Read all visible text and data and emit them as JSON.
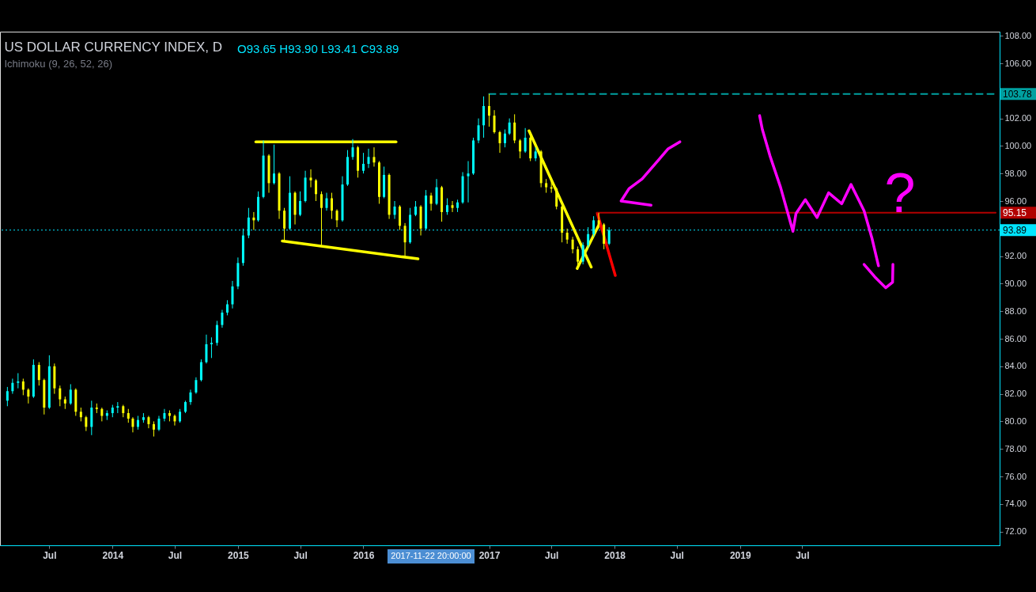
{
  "chart_data": {
    "type": "candlestick",
    "title": "US DOLLAR CURRENCY INDEX, D",
    "subtitle": "Ichimoku (9, 26, 52, 26)",
    "annotations": [
      "O93.65 H93.90 L93.41 C93.89",
      "2017-11-22 20:00:00",
      "?"
    ],
    "x": [
      "2013-03-01",
      "2013-03-16",
      "2013-04-01",
      "2013-04-16",
      "2013-05-01",
      "2013-05-16",
      "2013-06-01",
      "2013-06-16",
      "2013-07-01",
      "2013-07-16",
      "2013-08-01",
      "2013-08-16",
      "2013-09-01",
      "2013-09-16",
      "2013-10-01",
      "2013-10-16",
      "2013-11-01",
      "2013-11-16",
      "2013-12-01",
      "2013-12-16",
      "2014-01-01",
      "2014-01-16",
      "2014-02-01",
      "2014-02-16",
      "2014-03-01",
      "2014-03-16",
      "2014-04-01",
      "2014-04-16",
      "2014-05-01",
      "2014-05-16",
      "2014-06-01",
      "2014-06-16",
      "2014-07-01",
      "2014-07-16",
      "2014-08-01",
      "2014-08-16",
      "2014-09-01",
      "2014-09-16",
      "2014-10-01",
      "2014-10-16",
      "2014-11-01",
      "2014-11-16",
      "2014-12-01",
      "2014-12-16",
      "2015-01-01",
      "2015-01-16",
      "2015-02-01",
      "2015-02-16",
      "2015-03-01",
      "2015-03-16",
      "2015-04-01",
      "2015-04-16",
      "2015-05-01",
      "2015-05-16",
      "2015-06-01",
      "2015-06-16",
      "2015-07-01",
      "2015-07-16",
      "2015-08-01",
      "2015-08-16",
      "2015-09-01",
      "2015-09-16",
      "2015-10-01",
      "2015-10-16",
      "2015-11-01",
      "2015-11-16",
      "2015-12-01",
      "2015-12-16",
      "2016-01-01",
      "2016-01-16",
      "2016-02-01",
      "2016-02-16",
      "2016-03-01",
      "2016-03-16",
      "2016-04-01",
      "2016-04-16",
      "2016-05-01",
      "2016-05-16",
      "2016-06-01",
      "2016-06-16",
      "2016-07-01",
      "2016-07-16",
      "2016-08-01",
      "2016-08-16",
      "2016-09-01",
      "2016-09-16",
      "2016-10-01",
      "2016-10-16",
      "2016-11-01",
      "2016-11-16",
      "2016-12-01",
      "2016-12-16",
      "2017-01-01",
      "2017-01-16",
      "2017-02-01",
      "2017-02-16",
      "2017-03-01",
      "2017-03-16",
      "2017-04-01",
      "2017-04-16",
      "2017-05-01",
      "2017-05-16",
      "2017-06-01",
      "2017-06-16",
      "2017-07-01",
      "2017-07-16",
      "2017-08-01",
      "2017-08-16",
      "2017-09-01",
      "2017-09-16",
      "2017-10-01",
      "2017-10-16",
      "2017-11-01",
      "2017-11-16",
      "2017-12-01",
      "2017-12-16"
    ],
    "ohlc": [
      [
        81.5,
        82.5,
        81.1,
        82.2
      ],
      [
        82.2,
        83.1,
        82.0,
        82.8
      ],
      [
        82.8,
        83.5,
        82.4,
        82.9
      ],
      [
        82.9,
        83.1,
        81.9,
        82.3
      ],
      [
        82.3,
        82.4,
        81.3,
        81.8
      ],
      [
        81.8,
        84.5,
        81.7,
        84.1
      ],
      [
        84.1,
        84.3,
        82.6,
        83.0
      ],
      [
        83.0,
        83.1,
        80.5,
        81.0
      ],
      [
        81.0,
        84.8,
        80.9,
        84.0
      ],
      [
        84.0,
        84.2,
        82.0,
        82.4
      ],
      [
        82.4,
        82.6,
        81.1,
        81.6
      ],
      [
        81.6,
        81.8,
        80.9,
        81.3
      ],
      [
        81.3,
        82.7,
        81.2,
        82.3
      ],
      [
        82.3,
        82.4,
        80.4,
        80.7
      ],
      [
        80.7,
        81.0,
        80.0,
        80.3
      ],
      [
        80.3,
        80.4,
        79.3,
        79.6
      ],
      [
        79.6,
        81.5,
        79.0,
        81.0
      ],
      [
        81.0,
        81.3,
        80.6,
        80.9
      ],
      [
        80.9,
        81.0,
        80.0,
        80.4
      ],
      [
        80.4,
        80.8,
        80.1,
        80.6
      ],
      [
        80.6,
        81.2,
        80.3,
        81.0
      ],
      [
        81.0,
        81.4,
        80.6,
        81.1
      ],
      [
        81.1,
        81.2,
        80.3,
        80.6
      ],
      [
        80.6,
        80.9,
        79.9,
        80.2
      ],
      [
        80.2,
        80.3,
        79.2,
        79.6
      ],
      [
        79.6,
        80.4,
        79.4,
        80.1
      ],
      [
        80.1,
        80.6,
        79.9,
        80.3
      ],
      [
        80.3,
        80.4,
        79.5,
        79.8
      ],
      [
        79.8,
        80.0,
        78.9,
        79.4
      ],
      [
        79.4,
        80.4,
        79.3,
        80.2
      ],
      [
        80.2,
        80.9,
        80.0,
        80.6
      ],
      [
        80.6,
        80.8,
        80.0,
        80.4
      ],
      [
        80.4,
        80.5,
        79.7,
        80.0
      ],
      [
        80.0,
        80.9,
        79.9,
        80.7
      ],
      [
        80.7,
        81.5,
        80.6,
        81.4
      ],
      [
        81.4,
        82.3,
        81.2,
        82.1
      ],
      [
        82.1,
        83.2,
        82.0,
        83.0
      ],
      [
        83.0,
        84.5,
        82.9,
        84.3
      ],
      [
        84.3,
        86.3,
        84.2,
        85.6
      ],
      [
        85.6,
        86.1,
        84.6,
        85.7
      ],
      [
        85.7,
        87.3,
        85.5,
        87.0
      ],
      [
        87.0,
        88.1,
        86.8,
        87.9
      ],
      [
        87.9,
        88.8,
        87.7,
        88.5
      ],
      [
        88.5,
        90.2,
        88.2,
        89.8
      ],
      [
        89.8,
        91.9,
        89.6,
        91.5
      ],
      [
        91.5,
        94.0,
        91.3,
        93.5
      ],
      [
        93.5,
        95.5,
        93.3,
        94.8
      ],
      [
        94.8,
        95.2,
        93.9,
        94.6
      ],
      [
        94.6,
        96.7,
        94.5,
        96.3
      ],
      [
        96.3,
        100.4,
        96.2,
        99.3
      ],
      [
        99.3,
        99.4,
        96.6,
        97.3
      ],
      [
        97.3,
        100.1,
        97.2,
        98.0
      ],
      [
        98.0,
        98.1,
        94.7,
        95.3
      ],
      [
        95.3,
        95.5,
        93.1,
        94.0
      ],
      [
        94.0,
        97.8,
        93.9,
        96.6
      ],
      [
        96.6,
        96.7,
        94.3,
        95.0
      ],
      [
        95.0,
        96.7,
        94.9,
        96.0
      ],
      [
        96.0,
        98.2,
        95.9,
        97.7
      ],
      [
        97.7,
        98.3,
        97.0,
        97.5
      ],
      [
        97.5,
        97.6,
        96.0,
        96.5
      ],
      [
        96.5,
        96.7,
        92.8,
        95.5
      ],
      [
        95.5,
        96.6,
        95.3,
        96.2
      ],
      [
        96.2,
        96.6,
        94.7,
        95.3
      ],
      [
        95.3,
        95.4,
        94.1,
        94.6
      ],
      [
        94.6,
        97.8,
        94.5,
        97.2
      ],
      [
        97.2,
        99.7,
        97.1,
        99.2
      ],
      [
        99.2,
        100.5,
        99.0,
        99.9
      ],
      [
        99.9,
        100.0,
        97.7,
        98.2
      ],
      [
        98.2,
        99.5,
        98.0,
        98.7
      ],
      [
        98.7,
        99.8,
        98.4,
        99.2
      ],
      [
        99.2,
        99.9,
        98.5,
        98.8
      ],
      [
        98.8,
        98.9,
        95.8,
        96.3
      ],
      [
        96.3,
        98.5,
        96.2,
        97.9
      ],
      [
        97.9,
        98.0,
        94.7,
        95.0
      ],
      [
        95.0,
        96.0,
        94.7,
        95.6
      ],
      [
        95.6,
        95.7,
        93.9,
        94.2
      ],
      [
        94.2,
        94.4,
        92.0,
        93.0
      ],
      [
        93.0,
        95.5,
        92.9,
        95.0
      ],
      [
        95.0,
        96.0,
        94.9,
        95.6
      ],
      [
        95.6,
        95.7,
        93.5,
        94.0
      ],
      [
        94.0,
        96.8,
        93.9,
        96.4
      ],
      [
        96.4,
        96.6,
        95.3,
        95.8
      ],
      [
        95.8,
        97.6,
        95.7,
        97.0
      ],
      [
        97.0,
        97.1,
        94.5,
        95.2
      ],
      [
        95.2,
        96.2,
        95.0,
        95.7
      ],
      [
        95.7,
        96.0,
        95.2,
        95.5
      ],
      [
        95.5,
        96.1,
        95.2,
        95.9
      ],
      [
        95.9,
        98.1,
        95.8,
        97.8
      ],
      [
        97.8,
        98.9,
        95.9,
        98.0
      ],
      [
        98.0,
        100.6,
        97.9,
        100.4
      ],
      [
        100.4,
        102.0,
        100.2,
        101.5
      ],
      [
        101.5,
        103.6,
        100.6,
        102.9
      ],
      [
        102.9,
        103.78,
        101.4,
        102.2
      ],
      [
        102.2,
        102.6,
        100.9,
        101.0
      ],
      [
        101.0,
        101.1,
        99.5,
        100.2
      ],
      [
        100.2,
        101.2,
        99.9,
        100.9
      ],
      [
        100.9,
        102.0,
        100.8,
        101.7
      ],
      [
        101.7,
        102.3,
        100.2,
        100.4
      ],
      [
        100.4,
        100.5,
        99.1,
        99.6
      ],
      [
        99.6,
        101.3,
        99.5,
        100.6
      ],
      [
        100.6,
        100.7,
        98.9,
        99.1
      ],
      [
        99.1,
        99.9,
        98.9,
        99.6
      ],
      [
        99.6,
        99.7,
        97.0,
        97.3
      ],
      [
        97.3,
        97.6,
        96.6,
        97.0
      ],
      [
        97.0,
        97.6,
        96.6,
        96.9
      ],
      [
        96.9,
        97.0,
        95.4,
        95.6
      ],
      [
        95.6,
        95.7,
        93.0,
        93.7
      ],
      [
        93.7,
        94.0,
        92.9,
        93.2
      ],
      [
        93.2,
        93.4,
        92.2,
        92.5
      ],
      [
        92.5,
        92.7,
        91.0,
        91.6
      ],
      [
        91.6,
        93.0,
        91.4,
        92.8
      ],
      [
        92.8,
        94.1,
        92.6,
        93.6
      ],
      [
        93.6,
        94.9,
        93.4,
        94.6
      ],
      [
        94.6,
        95.15,
        94.0,
        94.3
      ],
      [
        94.3,
        94.4,
        92.5,
        92.9
      ],
      [
        92.9,
        94.1,
        92.8,
        93.89
      ]
    ],
    "colors": [
      "#00ffff",
      "#00ffff",
      "#00ffff",
      "#ffff00",
      "#ffff00",
      "#00ffff",
      "#ffff00",
      "#ffff00",
      "#00ffff",
      "#ffff00",
      "#ffff00",
      "#ffff00",
      "#00ffff",
      "#ffff00",
      "#ffff00",
      "#ffff00",
      "#00ffff",
      "#ffff00",
      "#ffff00",
      "#00ffff",
      "#00ffff",
      "#00ffff",
      "#ffff00",
      "#ffff00",
      "#ffff00",
      "#00ffff",
      "#00ffff",
      "#ffff00",
      "#ffff00",
      "#00ffff",
      "#00ffff",
      "#ffff00",
      "#ffff00",
      "#00ffff",
      "#00ffff",
      "#00ffff",
      "#00ffff",
      "#00ffff",
      "#00ffff",
      "#00ffff",
      "#00ffff",
      "#00ffff",
      "#00ffff",
      "#00ffff",
      "#00ffff",
      "#00ffff",
      "#00ffff",
      "#ffff00",
      "#00ffff",
      "#00ffff",
      "#ffff00",
      "#00ffff",
      "#ffff00",
      "#ffff00",
      "#00ffff",
      "#ffff00",
      "#00ffff",
      "#00ffff",
      "#ffff00",
      "#ffff00",
      "#ffff00",
      "#00ffff",
      "#ffff00",
      "#ffff00",
      "#00ffff",
      "#00ffff",
      "#00ffff",
      "#ffff00",
      "#00ffff",
      "#00ffff",
      "#ffff00",
      "#ffff00",
      "#00ffff",
      "#ffff00",
      "#00ffff",
      "#ffff00",
      "#ffff00",
      "#00ffff",
      "#00ffff",
      "#ffff00",
      "#00ffff",
      "#ffff00",
      "#00ffff",
      "#ffff00",
      "#00ffff",
      "#ffff00",
      "#00ffff",
      "#00ffff",
      "#00ffff",
      "#00ffff",
      "#00ffff",
      "#00ffff",
      "#ffff00",
      "#ffff00",
      "#ffff00",
      "#00ffff",
      "#00ffff",
      "#ffff00",
      "#ffff00",
      "#00ffff",
      "#ffff00",
      "#00ffff",
      "#ffff00",
      "#ffff00",
      "#ffff00",
      "#ffff00",
      "#ffff00",
      "#ffff00",
      "#ffff00",
      "#ffff00",
      "#00ffff",
      "#00ffff",
      "#00ffff",
      "#ffff00",
      "#ffff00",
      "#00ffff"
    ],
    "series": [
      {
        "type": "line",
        "color": "#ffff00",
        "x": [
          "2015-02-22",
          "2016-04-05"
        ],
        "values": [
          100.3,
          100.3
        ]
      },
      {
        "type": "line",
        "color": "#ffff00",
        "x": [
          "2015-05-10",
          "2016-06-08"
        ],
        "values": [
          93.1,
          91.8
        ]
      },
      {
        "type": "line",
        "color": "#ffff00",
        "x": [
          "2017-04-27",
          "2017-10-25"
        ],
        "values": [
          101.1,
          91.2
        ]
      },
      {
        "type": "line",
        "color": "#ffff00",
        "x": [
          "2017-09-14",
          "2017-11-17"
        ],
        "values": [
          91.1,
          94.3
        ]
      },
      {
        "type": "line",
        "color": "#ff0000",
        "x": [
          "2017-11-12",
          "2018-01-03"
        ],
        "values": [
          95.1,
          90.6
        ]
      },
      {
        "type": "line",
        "color": "#00a0a0",
        "line_style": "dashed",
        "x": [
          "2017-01-01",
          "2021-01-14"
        ],
        "values": [
          103.78,
          103.78
        ],
        "value_labels": [
          null,
          "103.78"
        ]
      },
      {
        "type": "line",
        "color": "#b20000",
        "x": [
          "2017-11-10",
          "2021-01-14"
        ],
        "values": [
          95.15,
          95.15
        ],
        "value_labels": [
          null,
          "95.15"
        ]
      },
      {
        "type": "line",
        "color": "#ff00ff",
        "x": [
          "2018-04-17",
          "2018-01-20",
          "2018-02-12",
          "2018-03-22",
          "2018-05-06",
          "2018-06-06",
          "2018-07-10"
        ],
        "values": [
          95.7,
          96.0,
          96.9,
          97.6,
          98.9,
          99.8,
          100.3
        ]
      },
      {
        "type": "line",
        "color": "#ff00ff",
        "x": [
          "2019-02-27",
          "2019-03-07",
          "2019-03-29",
          "2019-04-29",
          "2019-06-04",
          "2019-06-13",
          "2019-07-10",
          "2019-08-13",
          "2019-09-16",
          "2019-10-24",
          "2019-11-20",
          "2019-12-28",
          "2020-01-20",
          "2020-02-08"
        ],
        "values": [
          102.2,
          101.2,
          99.3,
          97.0,
          93.8,
          95.1,
          96.1,
          94.8,
          96.6,
          95.8,
          97.2,
          95.3,
          93.3,
          91.3
        ]
      },
      {
        "type": "line",
        "color": "#ff00ff",
        "x": [
          "2019-12-28",
          "2020-01-28",
          "2020-02-29",
          "2020-03-20",
          "2020-03-21"
        ],
        "values": [
          91.4,
          90.5,
          89.7,
          90.1,
          91.4
        ]
      }
    ],
    "ref_lines": [
      {
        "axis": "y",
        "value": 93.89,
        "label": "93.89",
        "color": "#00e5ff",
        "line_style": "dotted"
      }
    ],
    "xlim": [
      "2013-02-19",
      "2021-01-14"
    ],
    "xticks": [
      {
        "value": "2013-07-01",
        "label": "Jul"
      },
      {
        "value": "2014-01-01",
        "label": "2014"
      },
      {
        "value": "2014-07-01",
        "label": "Jul"
      },
      {
        "value": "2015-01-01",
        "label": "2015"
      },
      {
        "value": "2015-07-01",
        "label": "Jul"
      },
      {
        "value": "2016-01-01",
        "label": "2016"
      },
      {
        "value": "2017-01-01",
        "label": "2017"
      },
      {
        "value": "2017-07-01",
        "label": "Jul"
      },
      {
        "value": "2018-01-01",
        "label": "2018"
      },
      {
        "value": "2018-07-01",
        "label": "Jul"
      },
      {
        "value": "2019-01-01",
        "label": "2019"
      },
      {
        "value": "2019-07-01",
        "label": "Jul"
      }
    ],
    "ylim": [
      71.0,
      108.3
    ],
    "yticks": [
      {
        "value": 72,
        "label": "72.00"
      },
      {
        "value": 74,
        "label": "74.00"
      },
      {
        "value": 76,
        "label": "76.00"
      },
      {
        "value": 78,
        "label": "78.00"
      },
      {
        "value": 80,
        "label": "80.00"
      },
      {
        "value": 82,
        "label": "82.00"
      },
      {
        "value": 84,
        "label": "84.00"
      },
      {
        "value": 86,
        "label": "86.00"
      },
      {
        "value": 88,
        "label": "88.00"
      },
      {
        "value": 90,
        "label": "90.00"
      },
      {
        "value": 92,
        "label": "92.00"
      },
      {
        "value": 96,
        "label": "96.00"
      },
      {
        "value": 98,
        "label": "98.00"
      },
      {
        "value": 100,
        "label": "100.00"
      },
      {
        "value": 102,
        "label": "102.00"
      },
      {
        "value": 106,
        "label": "106.00"
      },
      {
        "value": 108,
        "label": "108.00"
      }
    ]
  }
}
